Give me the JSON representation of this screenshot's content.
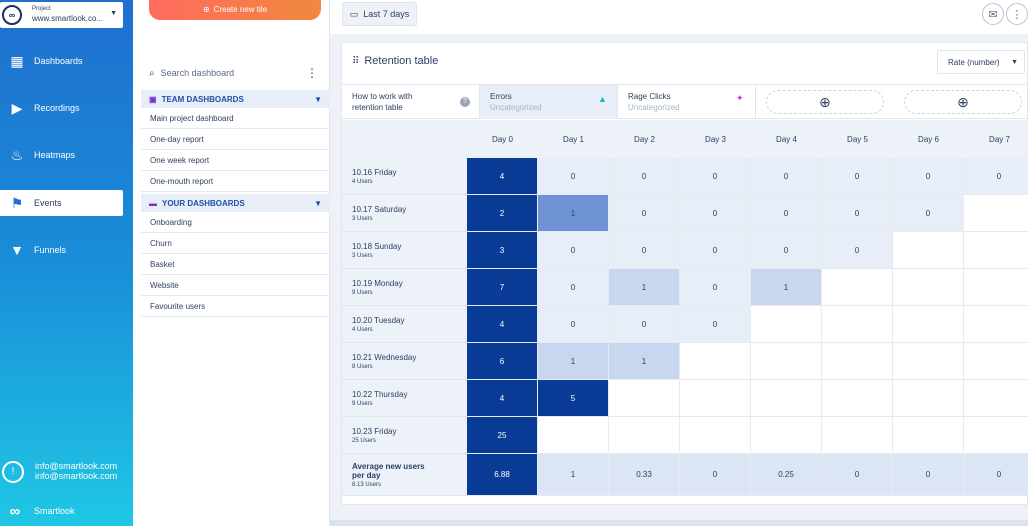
{
  "sidebar": {
    "project_label": "Project",
    "project_url": "www.smartlook.co...",
    "logo_glyph": "∞",
    "nav": [
      {
        "label": "Dashboards",
        "icon": "dashboard-grid-icon",
        "glyph": "▦",
        "active": false
      },
      {
        "label": "Recordings",
        "icon": "play-icon",
        "glyph": "▶",
        "active": false
      },
      {
        "label": "Heatmaps",
        "icon": "flame-icon",
        "glyph": "♨",
        "active": false
      },
      {
        "label": "Events",
        "icon": "flag-icon",
        "glyph": "⚑",
        "active": true
      },
      {
        "label": "Funnels",
        "icon": "funnel-icon",
        "glyph": "▼",
        "active": false
      }
    ],
    "user_email_1": "info@smartlook.com",
    "user_email_2": "info@smartlook.com",
    "avatar_glyph": "!",
    "brand": "Smartlook",
    "brand_glyph": "∞"
  },
  "panel": {
    "create_label": "Create new tile",
    "create_glyph": "⊕",
    "search_placeholder": "Search dashboard",
    "search_glyph": "⌕",
    "more_glyph": "⋮",
    "team_section": "TEAM DASHBOARDS",
    "team_glyph": "▣",
    "team_items": [
      "Main project dashboard",
      "One-day report",
      "One week report",
      "One-mouth report"
    ],
    "your_section": "YOUR DASHBOARDS",
    "your_glyph": "▬",
    "your_items": [
      "Onboarding",
      "Churn",
      "Basket",
      "Website",
      "Favourite users"
    ],
    "caret": "▼"
  },
  "topbar": {
    "date_range": "Last 7 days",
    "calendar_glyph": "▭",
    "share_glyph": "✉",
    "menu_glyph": "⋮"
  },
  "card": {
    "title": "Retention table",
    "title_glyph": "⠿",
    "rate_select": "Rate (number)",
    "rate_caret": "▼",
    "tiles": [
      {
        "line1": "How to work with",
        "line2": "retention table",
        "icon": "help-icon",
        "glyph": "?"
      },
      {
        "line1": "Errors",
        "line2": "Uncategorized",
        "icon": "warning-icon",
        "glyph": "▲"
      },
      {
        "line1": "Rage Clicks",
        "line2": "Uncategorized",
        "icon": "cursor-icon",
        "glyph": "✦"
      }
    ],
    "add_glyph": "⊕"
  },
  "table": {
    "days": [
      "Day 0",
      "Day 1",
      "Day 2",
      "Day 3",
      "Day 4",
      "Day 5",
      "Day 6",
      "Day 7"
    ],
    "rows": [
      {
        "date": "10.16 Friday",
        "users": "4 Users",
        "values": [
          "4",
          "0",
          "0",
          "0",
          "0",
          "0",
          "0",
          "0"
        ]
      },
      {
        "date": "10.17 Saturday",
        "users": "3 Users",
        "values": [
          "2",
          "1",
          "0",
          "0",
          "0",
          "0",
          "0",
          null
        ]
      },
      {
        "date": "10.18 Sunday",
        "users": "3 Users",
        "values": [
          "3",
          "0",
          "0",
          "0",
          "0",
          "0",
          null,
          null
        ]
      },
      {
        "date": "10.19 Monday",
        "users": "9 Users",
        "values": [
          "7",
          "0",
          "1",
          "0",
          "1",
          null,
          null,
          null
        ]
      },
      {
        "date": "10.20 Tuesday",
        "users": "4 Users",
        "values": [
          "4",
          "0",
          "0",
          "0",
          null,
          null,
          null,
          null
        ]
      },
      {
        "date": "10.21 Wednesday",
        "users": "8 Users",
        "values": [
          "6",
          "1",
          "1",
          null,
          null,
          null,
          null,
          null
        ]
      },
      {
        "date": "10.22 Thursday",
        "users": "9 Users",
        "values": [
          "4",
          "5",
          null,
          null,
          null,
          null,
          null,
          null
        ]
      },
      {
        "date": "10.23 Friday",
        "users": "25 Users",
        "values": [
          "25",
          null,
          null,
          null,
          null,
          null,
          null,
          null
        ]
      }
    ],
    "average": {
      "label_line1": "Average new users",
      "label_line2": "per day",
      "users": "8.13 Users",
      "values": [
        "6.88",
        "1",
        "0.33",
        "0",
        "0.25",
        "0",
        "0",
        "0"
      ]
    },
    "colors": {
      "day0": "#0a3b96",
      "dark": "#0a3b96",
      "mid": "#6f93d4",
      "light": "#c8d6ef",
      "zero": "#e8eef8"
    }
  }
}
